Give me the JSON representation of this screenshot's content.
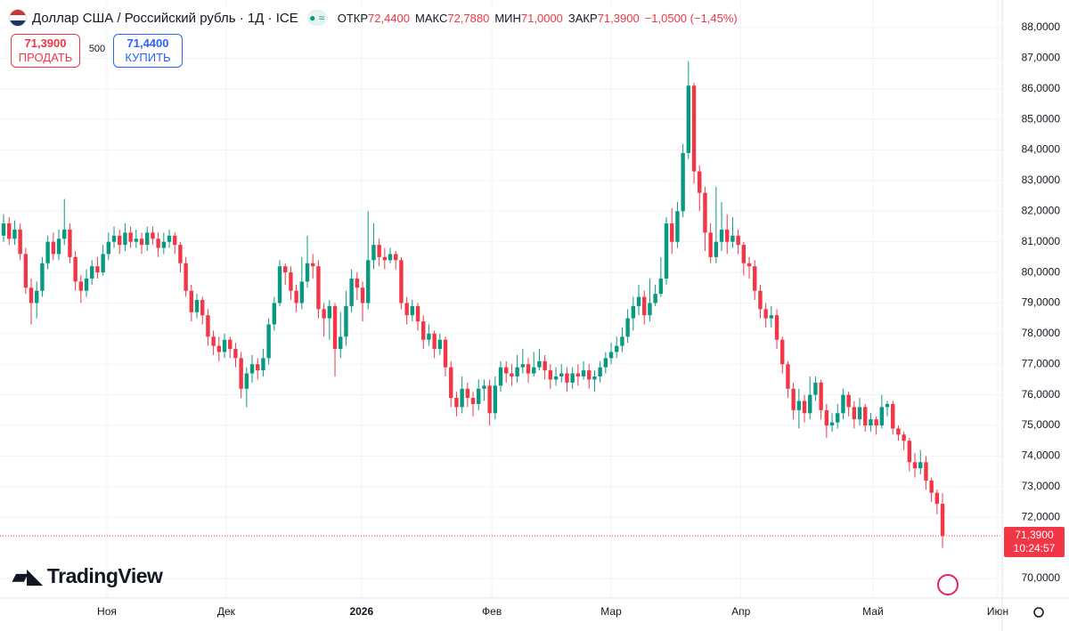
{
  "header": {
    "title": "Доллар США / Российский рубль · 1Д · ICE",
    "ohlc": [
      {
        "label": "ОТКР",
        "value": "72,4400"
      },
      {
        "label": "МАКС",
        "value": "72,7880"
      },
      {
        "label": "МИН",
        "value": "71,0000"
      },
      {
        "label": "ЗАКР",
        "value": "71,3900"
      }
    ],
    "change": "−1,0500 (−1,45%)"
  },
  "trade": {
    "sell_price": "71,3900",
    "sell_label": "ПРОДАТЬ",
    "quantity": "500",
    "buy_price": "71,4400",
    "buy_label": "КУПИТЬ"
  },
  "logo": "TradingView",
  "chart_data": {
    "type": "candlestick",
    "up_color": "#089981",
    "down_color": "#f23645",
    "grid": true,
    "last_price_label": "71,3900",
    "countdown": "10:24:57",
    "xlim": [
      -0.65,
      180.8
    ],
    "ylim": [
      69.36,
      88.9
    ],
    "xticks": [
      {
        "value": 18.7,
        "label": "Ноя"
      },
      {
        "value": 40.3,
        "label": "Дек"
      },
      {
        "value": 64.8,
        "label": "2026"
      },
      {
        "value": 88.4,
        "label": "Фев"
      },
      {
        "value": 110,
        "label": "Мар"
      },
      {
        "value": 133.5,
        "label": "Апр"
      },
      {
        "value": 157.4,
        "label": "Май"
      },
      {
        "value": 180,
        "label": "Июн"
      }
    ],
    "yticks": [
      {
        "value": 70,
        "label": "70,0000"
      },
      {
        "value": 72,
        "label": "72,0000"
      },
      {
        "value": 73,
        "label": "73,0000"
      },
      {
        "value": 74,
        "label": "74,0000"
      },
      {
        "value": 75,
        "label": "75,0000"
      },
      {
        "value": 76,
        "label": "76,0000"
      },
      {
        "value": 77,
        "label": "77,0000"
      },
      {
        "value": 78,
        "label": "78,0000"
      },
      {
        "value": 79,
        "label": "79,0000"
      },
      {
        "value": 80,
        "label": "80,0000"
      },
      {
        "value": 81,
        "label": "81,0000"
      },
      {
        "value": 82,
        "label": "82,0000"
      },
      {
        "value": 83,
        "label": "83,0000"
      },
      {
        "value": 84,
        "label": "84,0000"
      },
      {
        "value": 85,
        "label": "85,0000"
      },
      {
        "value": 86,
        "label": "86,0000"
      },
      {
        "value": 87,
        "label": "87,0000"
      },
      {
        "value": 88,
        "label": "88,0000"
      }
    ],
    "open": [
      81.2,
      81.6,
      81.1,
      81.4,
      80.6,
      79.5,
      79.0,
      79.4,
      80.3,
      81.0,
      80.6,
      81.1,
      81.4,
      80.5,
      79.7,
      79.4,
      79.8,
      80.2,
      80.0,
      80.6,
      81.0,
      81.2,
      80.9,
      81.3,
      81.0,
      81.1,
      80.9,
      81.3,
      81.1,
      80.8,
      81.0,
      81.2,
      80.9,
      80.3,
      79.4,
      78.7,
      79.1,
      78.6,
      77.9,
      77.6,
      77.4,
      77.8,
      77.5,
      77.2,
      76.2,
      76.7,
      77.0,
      76.8,
      77.2,
      78.3,
      79.0,
      80.2,
      80.0,
      79.4,
      79.0,
      79.7,
      80.3,
      80.2,
      78.8,
      78.5,
      78.9,
      77.5,
      77.9,
      78.9,
      79.8,
      79.5,
      79.0,
      80.4,
      80.9,
      80.5,
      80.4,
      80.6,
      80.4,
      79.0,
      78.6,
      78.9,
      78.4,
      77.8,
      78.0,
      77.5,
      77.8,
      76.9,
      75.9,
      75.6,
      76.2,
      75.9,
      75.7,
      76.2,
      76.3,
      75.4,
      76.3,
      76.9,
      76.7,
      76.6,
      76.9,
      77.0,
      76.7,
      76.9,
      77.1,
      76.8,
      76.5,
      76.6,
      76.7,
      76.4,
      76.7,
      76.6,
      76.8,
      76.5,
      76.6,
      76.9,
      77.2,
      77.4,
      77.6,
      77.9,
      78.5,
      78.9,
      79.2,
      78.6,
      79.0,
      79.3,
      79.8,
      81.6,
      81.0,
      82.0,
      83.9,
      86.1,
      83.3,
      82.6,
      81.3,
      80.5,
      81.0,
      81.4,
      81.0,
      81.2,
      80.9,
      80.3,
      80.2,
      79.4,
      78.8,
      78.5,
      78.6,
      77.8,
      77.0,
      76.2,
      75.5,
      75.8,
      75.4,
      76.0,
      76.4,
      75.5,
      75.0,
      75.1,
      75.4,
      76.0,
      75.6,
      75.2,
      75.6,
      75.0,
      75.2,
      75.0,
      75.6,
      75.7,
      74.9,
      74.7,
      74.5,
      73.8,
      73.6,
      73.8,
      73.2,
      72.8,
      72.44
    ],
    "high": [
      81.9,
      81.8,
      81.7,
      81.6,
      80.8,
      79.8,
      79.7,
      80.5,
      81.2,
      81.3,
      81.4,
      82.4,
      81.6,
      80.7,
      79.9,
      80.1,
      80.4,
      80.5,
      80.9,
      81.3,
      81.5,
      81.4,
      81.6,
      81.5,
      81.4,
      81.3,
      81.5,
      81.5,
      81.3,
      81.3,
      81.4,
      81.3,
      81.0,
      80.5,
      79.6,
      79.3,
      79.2,
      78.8,
      78.1,
      77.9,
      78.0,
      77.9,
      77.7,
      77.4,
      76.9,
      77.3,
      77.2,
      77.5,
      78.5,
      79.2,
      80.4,
      80.3,
      80.2,
      79.6,
      80.5,
      81.2,
      80.6,
      80.4,
      79.0,
      79.1,
      79.0,
      78.7,
      79.4,
      80.1,
      80.0,
      79.7,
      82.0,
      81.6,
      81.1,
      80.8,
      80.8,
      80.7,
      80.5,
      79.2,
      79.1,
      79.0,
      78.6,
      78.3,
      78.1,
      78.0,
      77.9,
      77.1,
      76.1,
      76.6,
      76.4,
      76.1,
      76.5,
      76.5,
      76.5,
      76.6,
      77.1,
      77.1,
      77.0,
      77.3,
      77.5,
      77.2,
      77.4,
      77.5,
      77.3,
      77.0,
      76.9,
      77.0,
      76.9,
      76.9,
      77.0,
      77.1,
      77.0,
      76.8,
      77.1,
      77.4,
      77.7,
      77.9,
      78.2,
      78.8,
      79.2,
      79.6,
      79.4,
      79.8,
      79.6,
      80.5,
      81.8,
      82.1,
      82.3,
      84.2,
      86.9,
      86.2,
      83.5,
      82.8,
      81.6,
      82.8,
      82.3,
      81.9,
      81.8,
      81.4,
      81.0,
      80.5,
      80.4,
      79.6,
      79.0,
      78.9,
      78.8,
      77.9,
      77.1,
      76.4,
      76.2,
      76.0,
      76.6,
      76.6,
      76.5,
      75.7,
      75.4,
      75.7,
      76.2,
      76.1,
      75.8,
      75.9,
      75.7,
      75.4,
      75.3,
      76.0,
      75.8,
      75.8,
      75.0,
      74.8,
      74.6,
      74.1,
      74.2,
      74.0,
      73.3,
      72.9,
      72.788
    ],
    "low": [
      81.0,
      80.9,
      80.9,
      80.4,
      79.3,
      78.3,
      78.5,
      79.2,
      80.1,
      80.4,
      80.4,
      80.9,
      80.3,
      79.4,
      79.0,
      79.2,
      79.6,
      79.8,
      79.9,
      80.4,
      80.8,
      80.6,
      80.7,
      80.8,
      80.8,
      80.6,
      80.7,
      80.9,
      80.5,
      80.6,
      80.8,
      80.6,
      80.0,
      79.2,
      78.4,
      78.5,
      78.3,
      77.6,
      77.3,
      77.1,
      77.2,
      77.2,
      76.9,
      75.9,
      75.6,
      76.4,
      76.5,
      76.6,
      77.0,
      78.1,
      78.9,
      79.6,
      79.1,
      78.7,
      78.8,
      79.5,
      79.8,
      78.5,
      77.9,
      77.8,
      76.6,
      77.2,
      77.6,
      78.7,
      79.1,
      78.4,
      78.8,
      80.1,
      80.2,
      80.1,
      80.3,
      80.1,
      78.8,
      78.3,
      78.4,
      78.1,
      77.5,
      77.6,
      77.2,
      77.3,
      76.6,
      75.6,
      75.3,
      75.4,
      75.6,
      75.3,
      75.5,
      75.8,
      75.0,
      75.2,
      76.1,
      76.4,
      76.3,
      76.4,
      76.7,
      76.4,
      76.6,
      76.8,
      76.5,
      76.2,
      76.3,
      76.4,
      76.1,
      76.2,
      76.3,
      76.5,
      76.2,
      76.1,
      76.4,
      76.7,
      77.0,
      77.2,
      77.4,
      77.7,
      78.1,
      78.6,
      78.3,
      78.4,
      78.9,
      79.2,
      79.6,
      80.6,
      80.8,
      81.8,
      83.7,
      82.9,
      82.0,
      80.7,
      80.3,
      80.3,
      80.7,
      80.6,
      80.8,
      80.6,
      79.9,
      79.8,
      79.1,
      78.5,
      78.2,
      78.2,
      77.5,
      76.7,
      75.9,
      75.2,
      74.9,
      75.1,
      75.2,
      75.8,
      75.2,
      74.6,
      74.8,
      74.9,
      75.2,
      75.3,
      74.9,
      75.0,
      74.8,
      74.8,
      74.7,
      74.9,
      75.3,
      74.7,
      74.5,
      74.2,
      73.5,
      73.3,
      73.4,
      72.9,
      72.5,
      72.1,
      71.0
    ],
    "close": [
      81.6,
      81.1,
      81.4,
      80.6,
      79.5,
      79.0,
      79.4,
      80.3,
      81.0,
      80.6,
      81.1,
      81.4,
      80.5,
      79.7,
      79.4,
      79.8,
      80.2,
      80.0,
      80.6,
      81.0,
      81.2,
      80.9,
      81.3,
      81.0,
      81.1,
      80.9,
      81.3,
      81.1,
      80.8,
      81.0,
      81.2,
      80.9,
      80.3,
      79.4,
      78.7,
      79.1,
      78.6,
      77.9,
      77.6,
      77.4,
      77.8,
      77.5,
      77.2,
      76.2,
      76.7,
      77.0,
      76.8,
      77.2,
      78.3,
      79.0,
      80.2,
      80.0,
      79.4,
      79.0,
      79.7,
      80.3,
      80.2,
      78.8,
      78.5,
      78.9,
      77.5,
      77.9,
      78.9,
      79.8,
      79.5,
      79.0,
      80.4,
      80.9,
      80.5,
      80.4,
      80.6,
      80.4,
      79.0,
      78.6,
      78.9,
      78.4,
      77.8,
      78.0,
      77.5,
      77.8,
      76.9,
      75.9,
      75.6,
      76.2,
      75.9,
      75.7,
      76.2,
      76.3,
      75.4,
      76.3,
      76.9,
      76.7,
      76.6,
      76.9,
      77.0,
      76.7,
      76.9,
      77.1,
      76.8,
      76.5,
      76.6,
      76.7,
      76.4,
      76.7,
      76.6,
      76.8,
      76.5,
      76.6,
      76.9,
      77.2,
      77.4,
      77.6,
      77.9,
      78.5,
      78.9,
      79.2,
      78.6,
      79.0,
      79.3,
      79.8,
      81.6,
      81.0,
      82.0,
      83.9,
      86.1,
      83.3,
      82.6,
      81.3,
      80.5,
      81.0,
      81.4,
      81.0,
      81.2,
      80.9,
      80.3,
      80.2,
      79.4,
      78.8,
      78.5,
      78.6,
      77.8,
      77.0,
      76.2,
      75.5,
      75.8,
      75.4,
      76.0,
      76.4,
      75.5,
      75.0,
      75.1,
      75.4,
      76.0,
      75.6,
      75.2,
      75.6,
      75.0,
      75.2,
      75.0,
      75.6,
      75.7,
      74.9,
      74.7,
      74.5,
      73.8,
      73.6,
      73.8,
      73.2,
      72.8,
      72.44,
      71.39
    ]
  }
}
